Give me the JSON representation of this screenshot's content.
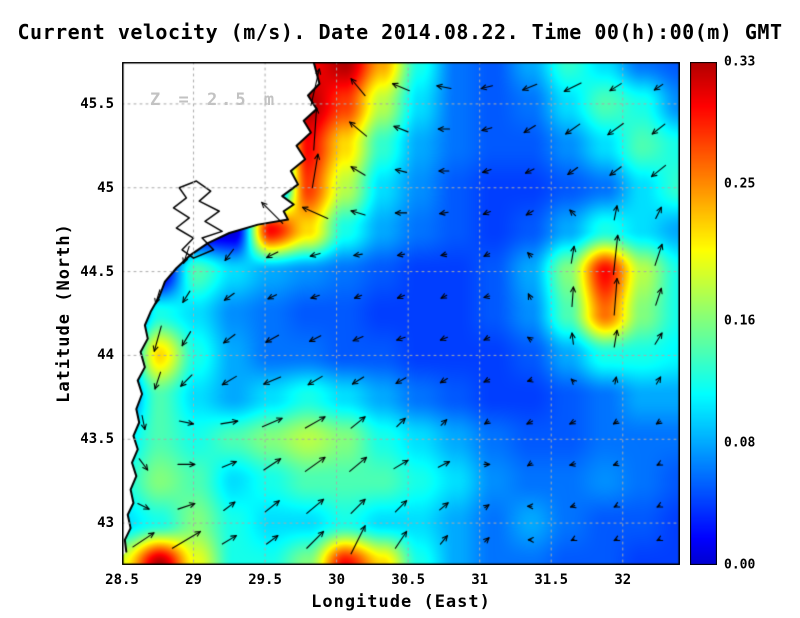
{
  "chart_data": {
    "type": "heatmap",
    "title": "Current velocity (m/s). Date 2014.08.22. Time 00(h):00(m) GMT",
    "xlabel": "Longitude (East)",
    "ylabel": "Latitude (North)",
    "annotation": "Z = 2.5 m",
    "x_range": [
      28.5,
      32.4
    ],
    "y_range": [
      42.75,
      45.75
    ],
    "x_ticks": [
      "28.5",
      "29",
      "29.5",
      "30",
      "30.5",
      "31",
      "31.5",
      "32"
    ],
    "y_ticks": [
      "43",
      "43.5",
      "44",
      "44.5",
      "45",
      "45.5"
    ],
    "grid_on": true,
    "legend_position": "right-colorbar",
    "colorbar": {
      "min": 0,
      "max": 0.33,
      "ticks": [
        "0.00",
        "0.08",
        "0.16",
        "0.25",
        "0.33"
      ]
    },
    "colors": {
      "land": "#ffffff",
      "coast_stroke": "#000000",
      "grid_dots": "#aaaaaa",
      "arrow": "#000000",
      "annotation_color": "#c2c2c2"
    },
    "speed_grid": {
      "nx": 16,
      "ny": 13,
      "x0": 28.5,
      "x1": 32.4,
      "y_north": 45.75,
      "y_south": 42.75,
      "row_order": "north-to-south",
      "values": [
        [
          0,
          0,
          0,
          0,
          0,
          0.3,
          0.33,
          0.24,
          0.12,
          0.06,
          0.05,
          0.08,
          0.13,
          0.1,
          0.06,
          0.05
        ],
        [
          0,
          0,
          0,
          0,
          0,
          0.33,
          0.28,
          0.18,
          0.1,
          0.06,
          0.05,
          0.06,
          0.1,
          0.14,
          0.12,
          0.07
        ],
        [
          0,
          0,
          0,
          0,
          0,
          0.3,
          0.22,
          0.13,
          0.08,
          0.06,
          0.05,
          0.05,
          0.07,
          0.1,
          0.14,
          0.12
        ],
        [
          0,
          0,
          0,
          0,
          0,
          0.28,
          0.18,
          0.1,
          0.07,
          0.05,
          0.04,
          0.04,
          0.05,
          0.06,
          0.1,
          0.13
        ],
        [
          0,
          0,
          0,
          0,
          0.3,
          0.22,
          0.12,
          0.08,
          0.06,
          0.05,
          0.04,
          0.05,
          0.08,
          0.12,
          0.1,
          0.08
        ],
        [
          0,
          0,
          0.14,
          0.1,
          0.08,
          0.07,
          0.06,
          0.05,
          0.04,
          0.04,
          0.05,
          0.08,
          0.16,
          0.3,
          0.18,
          0.12
        ],
        [
          0,
          0.12,
          0.1,
          0.07,
          0.06,
          0.05,
          0.05,
          0.04,
          0.04,
          0.04,
          0.05,
          0.07,
          0.14,
          0.26,
          0.16,
          0.12
        ],
        [
          0.05,
          0.22,
          0.12,
          0.08,
          0.06,
          0.06,
          0.05,
          0.05,
          0.04,
          0.04,
          0.04,
          0.05,
          0.08,
          0.12,
          0.12,
          0.11
        ],
        [
          0.05,
          0.14,
          0.1,
          0.08,
          0.1,
          0.12,
          0.1,
          0.08,
          0.06,
          0.05,
          0.04,
          0.04,
          0.05,
          0.06,
          0.08,
          0.08
        ],
        [
          0.1,
          0.14,
          0.12,
          0.14,
          0.16,
          0.18,
          0.16,
          0.12,
          0.1,
          0.08,
          0.06,
          0.05,
          0.05,
          0.06,
          0.06,
          0.06
        ],
        [
          0.12,
          0.16,
          0.14,
          0.1,
          0.12,
          0.14,
          0.14,
          0.14,
          0.12,
          0.1,
          0.07,
          0.06,
          0.06,
          0.07,
          0.06,
          0.05
        ],
        [
          0.1,
          0.12,
          0.16,
          0.12,
          0.1,
          0.1,
          0.12,
          0.1,
          0.1,
          0.08,
          0.06,
          0.08,
          0.06,
          0.05,
          0.05,
          0.04
        ],
        [
          0.2,
          0.33,
          0.2,
          0.12,
          0.12,
          0.16,
          0.3,
          0.22,
          0.12,
          0.08,
          0.06,
          0.06,
          0.05,
          0.05,
          0.04,
          0.04
        ]
      ]
    },
    "vectors": [
      [
        29.85,
        45.6,
        0.06,
        0.26
      ],
      [
        30.15,
        45.6,
        -0.1,
        0.12
      ],
      [
        30.45,
        45.6,
        -0.12,
        0.05
      ],
      [
        30.75,
        45.6,
        -0.1,
        0.02
      ],
      [
        31.05,
        45.6,
        -0.08,
        -0.02
      ],
      [
        31.35,
        45.6,
        -0.1,
        -0.04
      ],
      [
        31.65,
        45.6,
        -0.12,
        -0.06
      ],
      [
        31.95,
        45.6,
        -0.08,
        -0.05
      ],
      [
        32.25,
        45.6,
        -0.06,
        -0.04
      ],
      [
        29.85,
        45.35,
        0.02,
        0.3
      ],
      [
        30.15,
        45.35,
        -0.12,
        0.1
      ],
      [
        30.45,
        45.35,
        -0.1,
        0.04
      ],
      [
        30.75,
        45.35,
        -0.08,
        0.0
      ],
      [
        31.05,
        45.35,
        -0.07,
        -0.02
      ],
      [
        31.35,
        45.35,
        -0.08,
        -0.05
      ],
      [
        31.65,
        45.35,
        -0.1,
        -0.07
      ],
      [
        31.95,
        45.35,
        -0.11,
        -0.08
      ],
      [
        32.25,
        45.35,
        -0.09,
        -0.07
      ],
      [
        29.85,
        45.1,
        0.04,
        0.24
      ],
      [
        30.15,
        45.1,
        -0.1,
        0.06
      ],
      [
        30.45,
        45.1,
        -0.08,
        0.02
      ],
      [
        30.75,
        45.1,
        -0.07,
        0.0
      ],
      [
        31.05,
        45.1,
        -0.06,
        -0.02
      ],
      [
        31.35,
        45.1,
        -0.06,
        -0.03
      ],
      [
        31.65,
        45.1,
        -0.07,
        -0.05
      ],
      [
        31.95,
        45.1,
        -0.08,
        -0.06
      ],
      [
        32.25,
        45.1,
        -0.1,
        -0.08
      ],
      [
        29.55,
        44.85,
        -0.15,
        0.15
      ],
      [
        29.85,
        44.85,
        -0.18,
        0.08
      ],
      [
        30.15,
        44.85,
        -0.1,
        0.03
      ],
      [
        30.45,
        44.85,
        -0.08,
        0.0
      ],
      [
        30.75,
        44.85,
        -0.06,
        -0.01
      ],
      [
        31.05,
        44.85,
        -0.05,
        -0.02
      ],
      [
        31.35,
        44.85,
        -0.05,
        -0.03
      ],
      [
        31.65,
        44.85,
        -0.04,
        0.04
      ],
      [
        31.95,
        44.85,
        0.02,
        0.1
      ],
      [
        32.25,
        44.85,
        0.04,
        0.08
      ],
      [
        28.95,
        44.6,
        -0.04,
        -0.12
      ],
      [
        29.25,
        44.6,
        -0.06,
        -0.08
      ],
      [
        29.55,
        44.6,
        -0.08,
        -0.04
      ],
      [
        29.85,
        44.6,
        -0.07,
        -0.02
      ],
      [
        30.15,
        44.6,
        -0.06,
        -0.01
      ],
      [
        30.45,
        44.6,
        -0.05,
        -0.01
      ],
      [
        30.75,
        44.6,
        -0.04,
        -0.01
      ],
      [
        31.05,
        44.6,
        -0.04,
        -0.02
      ],
      [
        31.35,
        44.6,
        -0.03,
        0.03
      ],
      [
        31.65,
        44.6,
        0.02,
        0.12
      ],
      [
        31.95,
        44.6,
        0.03,
        0.28
      ],
      [
        32.25,
        44.6,
        0.05,
        0.15
      ],
      [
        28.75,
        44.35,
        -0.03,
        -0.1
      ],
      [
        28.95,
        44.35,
        -0.05,
        -0.08
      ],
      [
        29.25,
        44.35,
        -0.07,
        -0.05
      ],
      [
        29.55,
        44.35,
        -0.06,
        -0.03
      ],
      [
        29.85,
        44.35,
        -0.06,
        -0.02
      ],
      [
        30.15,
        44.35,
        -0.05,
        -0.02
      ],
      [
        30.45,
        44.35,
        -0.05,
        -0.02
      ],
      [
        30.75,
        44.35,
        -0.04,
        -0.02
      ],
      [
        31.05,
        44.35,
        -0.04,
        -0.01
      ],
      [
        31.35,
        44.35,
        -0.02,
        0.04
      ],
      [
        31.65,
        44.35,
        0.01,
        0.14
      ],
      [
        31.95,
        44.35,
        0.02,
        0.26
      ],
      [
        32.25,
        44.35,
        0.04,
        0.12
      ],
      [
        28.75,
        44.1,
        -0.05,
        -0.18
      ],
      [
        28.95,
        44.1,
        -0.06,
        -0.1
      ],
      [
        29.25,
        44.1,
        -0.08,
        -0.06
      ],
      [
        29.55,
        44.1,
        -0.09,
        -0.05
      ],
      [
        29.85,
        44.1,
        -0.08,
        -0.04
      ],
      [
        30.15,
        44.1,
        -0.07,
        -0.03
      ],
      [
        30.45,
        44.1,
        -0.06,
        -0.02
      ],
      [
        30.75,
        44.1,
        -0.05,
        -0.02
      ],
      [
        31.05,
        44.1,
        -0.04,
        -0.02
      ],
      [
        31.35,
        44.1,
        -0.03,
        0.02
      ],
      [
        31.65,
        44.1,
        -0.01,
        0.08
      ],
      [
        31.95,
        44.1,
        0.02,
        0.12
      ],
      [
        32.25,
        44.1,
        0.05,
        0.08
      ],
      [
        28.75,
        43.85,
        -0.04,
        -0.12
      ],
      [
        28.95,
        43.85,
        -0.08,
        -0.08
      ],
      [
        29.25,
        43.85,
        -0.1,
        -0.06
      ],
      [
        29.55,
        43.85,
        -0.12,
        -0.05
      ],
      [
        29.85,
        43.85,
        -0.1,
        -0.06
      ],
      [
        30.15,
        43.85,
        -0.08,
        -0.05
      ],
      [
        30.45,
        43.85,
        -0.07,
        -0.04
      ],
      [
        30.75,
        43.85,
        -0.05,
        -0.03
      ],
      [
        31.05,
        43.85,
        -0.04,
        -0.02
      ],
      [
        31.35,
        43.85,
        -0.03,
        -0.01
      ],
      [
        31.65,
        43.85,
        -0.02,
        0.02
      ],
      [
        31.95,
        43.85,
        0.01,
        0.05
      ],
      [
        32.25,
        43.85,
        0.03,
        0.05
      ],
      [
        28.65,
        43.6,
        0.02,
        -0.1
      ],
      [
        28.95,
        43.6,
        0.1,
        -0.02
      ],
      [
        29.25,
        43.6,
        0.12,
        0.02
      ],
      [
        29.55,
        43.6,
        0.14,
        0.06
      ],
      [
        29.85,
        43.6,
        0.14,
        0.08
      ],
      [
        30.15,
        43.6,
        0.1,
        0.08
      ],
      [
        30.45,
        43.6,
        0.06,
        0.06
      ],
      [
        30.75,
        43.6,
        0.04,
        0.04
      ],
      [
        31.05,
        43.6,
        -0.03,
        -0.02
      ],
      [
        31.35,
        43.6,
        -0.04,
        -0.02
      ],
      [
        31.65,
        43.6,
        -0.04,
        -0.02
      ],
      [
        31.95,
        43.6,
        -0.03,
        -0.02
      ],
      [
        32.25,
        43.6,
        -0.03,
        -0.02
      ],
      [
        28.65,
        43.35,
        0.06,
        -0.08
      ],
      [
        28.95,
        43.35,
        0.12,
        0.0
      ],
      [
        29.25,
        43.35,
        0.1,
        0.04
      ],
      [
        29.55,
        43.35,
        0.12,
        0.08
      ],
      [
        29.85,
        43.35,
        0.14,
        0.1
      ],
      [
        30.15,
        43.35,
        0.12,
        0.1
      ],
      [
        30.45,
        43.35,
        0.1,
        0.06
      ],
      [
        30.75,
        43.35,
        0.08,
        0.04
      ],
      [
        31.05,
        43.35,
        0.04,
        0.0
      ],
      [
        31.35,
        43.35,
        -0.03,
        -0.02
      ],
      [
        31.65,
        43.35,
        -0.04,
        -0.01
      ],
      [
        31.95,
        43.35,
        -0.03,
        -0.01
      ],
      [
        32.25,
        43.35,
        -0.02,
        -0.01
      ],
      [
        28.65,
        43.1,
        0.08,
        -0.04
      ],
      [
        28.95,
        43.1,
        0.12,
        0.04
      ],
      [
        29.25,
        43.1,
        0.08,
        0.06
      ],
      [
        29.55,
        43.1,
        0.1,
        0.08
      ],
      [
        29.85,
        43.1,
        0.12,
        0.1
      ],
      [
        30.15,
        43.1,
        0.1,
        0.1
      ],
      [
        30.45,
        43.1,
        0.08,
        0.08
      ],
      [
        30.75,
        43.1,
        0.06,
        0.05
      ],
      [
        31.05,
        43.1,
        0.03,
        0.02
      ],
      [
        31.35,
        43.1,
        -0.03,
        0.0
      ],
      [
        31.65,
        43.1,
        -0.03,
        -0.01
      ],
      [
        31.95,
        43.1,
        -0.02,
        -0.01
      ],
      [
        32.25,
        43.1,
        -0.02,
        -0.01
      ],
      [
        28.65,
        42.9,
        0.15,
        0.1
      ],
      [
        28.95,
        42.9,
        0.2,
        0.12
      ],
      [
        29.25,
        42.9,
        0.1,
        0.06
      ],
      [
        29.55,
        42.9,
        0.08,
        0.06
      ],
      [
        29.85,
        42.9,
        0.12,
        0.12
      ],
      [
        30.15,
        42.9,
        0.1,
        0.2
      ],
      [
        30.45,
        42.9,
        0.08,
        0.12
      ],
      [
        30.75,
        42.9,
        0.05,
        0.06
      ],
      [
        31.05,
        42.9,
        0.03,
        0.03
      ],
      [
        31.35,
        42.9,
        -0.02,
        0.0
      ],
      [
        31.65,
        42.9,
        -0.02,
        -0.01
      ],
      [
        31.95,
        42.9,
        -0.02,
        -0.01
      ],
      [
        32.25,
        42.9,
        -0.02,
        -0.01
      ]
    ],
    "coastline": [
      [
        29.83,
        45.78
      ],
      [
        29.88,
        45.62
      ],
      [
        29.8,
        45.55
      ],
      [
        29.86,
        45.47
      ],
      [
        29.77,
        45.4
      ],
      [
        29.82,
        45.33
      ],
      [
        29.72,
        45.25
      ],
      [
        29.78,
        45.17
      ],
      [
        29.68,
        45.1
      ],
      [
        29.73,
        45.02
      ],
      [
        29.62,
        44.95
      ],
      [
        29.7,
        44.9
      ],
      [
        29.63,
        44.86
      ],
      [
        29.66,
        44.81
      ],
      [
        29.45,
        44.78
      ],
      [
        29.25,
        44.73
      ],
      [
        29.1,
        44.67
      ],
      [
        28.98,
        44.6
      ],
      [
        28.88,
        44.52
      ],
      [
        28.8,
        44.44
      ],
      [
        28.76,
        44.35
      ],
      [
        28.7,
        44.26
      ],
      [
        28.66,
        44.18
      ],
      [
        28.68,
        44.1
      ],
      [
        28.63,
        44.02
      ],
      [
        28.66,
        43.93
      ],
      [
        28.61,
        43.85
      ],
      [
        28.64,
        43.77
      ],
      [
        28.6,
        43.68
      ],
      [
        28.62,
        43.6
      ],
      [
        28.58,
        43.52
      ],
      [
        28.61,
        43.44
      ],
      [
        28.57,
        43.36
      ],
      [
        28.6,
        43.28
      ],
      [
        28.56,
        43.2
      ],
      [
        28.58,
        43.12
      ],
      [
        28.54,
        43.05
      ],
      [
        28.56,
        42.97
      ],
      [
        28.52,
        42.9
      ],
      [
        28.53,
        42.83
      ],
      [
        28.48,
        42.78
      ],
      [
        28.48,
        45.78
      ]
    ],
    "lake": [
      [
        29.02,
        45.04
      ],
      [
        29.12,
        44.98
      ],
      [
        29.04,
        44.92
      ],
      [
        29.18,
        44.86
      ],
      [
        29.08,
        44.8
      ],
      [
        29.2,
        44.74
      ],
      [
        29.06,
        44.7
      ],
      [
        29.14,
        44.63
      ],
      [
        29.0,
        44.58
      ],
      [
        28.92,
        44.63
      ],
      [
        29.0,
        44.7
      ],
      [
        28.88,
        44.76
      ],
      [
        28.97,
        44.82
      ],
      [
        28.86,
        44.88
      ],
      [
        28.95,
        44.94
      ],
      [
        28.9,
        45.0
      ]
    ]
  }
}
